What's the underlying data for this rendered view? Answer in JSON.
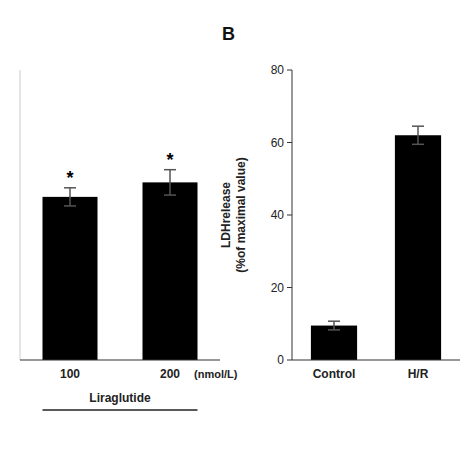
{
  "chart_data": [
    {
      "type": "bar",
      "categories": [
        "100",
        "200"
      ],
      "values": [
        45.0,
        49.0
      ],
      "errors": [
        2.5,
        3.5
      ],
      "color": "#000000",
      "ylim": [
        0,
        80
      ],
      "tick_labels": "x",
      "significance": [
        "*",
        "*"
      ],
      "annotations": [
        "(nmol/L)"
      ],
      "xlabel": "Liraglutide"
    },
    {
      "type": "bar",
      "title": "B",
      "categories": [
        "Control",
        "H/R"
      ],
      "values": [
        9.5,
        62.0
      ],
      "errors": [
        1.2,
        2.5
      ],
      "color": "#000000",
      "ylim": [
        0,
        80
      ],
      "yticks": [
        0,
        20,
        40,
        60,
        80
      ],
      "ylabel": "LDHrelease\n(%of maximal value)"
    }
  ]
}
